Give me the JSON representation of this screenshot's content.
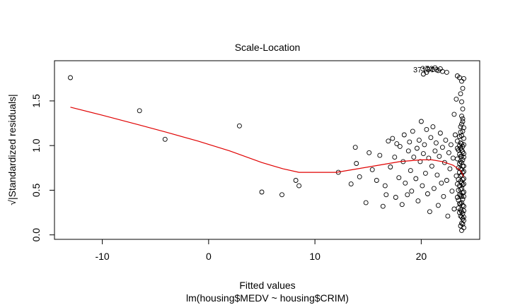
{
  "chart_data": {
    "type": "scatter",
    "title": "Scale-Location",
    "xlabel": "Fitted values",
    "sublabel": "lm(housing$MEDV ~ housing$CRIM)",
    "ylabel": "√|Standardized residuals|",
    "xlim": [
      -14.5,
      25.5
    ],
    "ylim": [
      -0.05,
      1.95
    ],
    "x_ticks": [
      -10,
      0,
      10,
      20
    ],
    "y_ticks": [
      0.0,
      0.5,
      1.0,
      1.5
    ],
    "x_tick_labels": [
      "-10",
      "0",
      "10",
      "20"
    ],
    "y_tick_labels": [
      "0.0",
      "0.5",
      "1.0",
      "1.5"
    ],
    "grid": false,
    "point_color": "#000000",
    "smooth_color": "#e00000",
    "labeled_points": [
      {
        "label": "371",
        "x": 20.6,
        "y": 1.86
      },
      {
        "label": "372",
        "x": 21.3,
        "y": 1.87
      },
      {
        "label": "373",
        "x": 21.8,
        "y": 1.86
      }
    ],
    "smooth_line": {
      "x": [
        -13.0,
        -10.0,
        -6.5,
        -4.0,
        -1.0,
        2.0,
        5.0,
        7.0,
        8.5,
        10.5,
        12.0,
        14.0,
        16.0,
        18.0,
        20.0,
        21.0,
        22.0,
        23.0,
        23.7,
        24.0
      ],
      "y": [
        1.43,
        1.34,
        1.23,
        1.15,
        1.05,
        0.94,
        0.81,
        0.74,
        0.7,
        0.7,
        0.7,
        0.74,
        0.78,
        0.82,
        0.84,
        0.84,
        0.82,
        0.78,
        0.72,
        0.65
      ]
    },
    "points": [
      [
        -13.0,
        1.76
      ],
      [
        -6.5,
        1.39
      ],
      [
        -4.1,
        1.07
      ],
      [
        2.9,
        1.22
      ],
      [
        5.0,
        0.48
      ],
      [
        6.9,
        0.45
      ],
      [
        8.2,
        0.61
      ],
      [
        8.5,
        0.55
      ],
      [
        12.2,
        0.7
      ],
      [
        13.4,
        0.57
      ],
      [
        13.9,
        0.8
      ],
      [
        13.8,
        0.98
      ],
      [
        14.2,
        0.65
      ],
      [
        14.8,
        0.36
      ],
      [
        15.1,
        0.92
      ],
      [
        15.4,
        0.73
      ],
      [
        15.8,
        0.61
      ],
      [
        16.1,
        0.89
      ],
      [
        16.4,
        0.32
      ],
      [
        16.6,
        0.55
      ],
      [
        16.7,
        0.45
      ],
      [
        16.9,
        1.05
      ],
      [
        17.1,
        0.76
      ],
      [
        17.3,
        1.08
      ],
      [
        17.5,
        0.87
      ],
      [
        17.6,
        0.42
      ],
      [
        17.7,
        1.02
      ],
      [
        17.9,
        0.64
      ],
      [
        18.0,
        0.99
      ],
      [
        18.2,
        0.34
      ],
      [
        18.3,
        0.82
      ],
      [
        18.4,
        1.12
      ],
      [
        18.5,
        0.58
      ],
      [
        18.7,
        0.45
      ],
      [
        18.8,
        0.94
      ],
      [
        18.9,
        1.04
      ],
      [
        19.0,
        0.72
      ],
      [
        19.1,
        0.49
      ],
      [
        19.2,
        1.16
      ],
      [
        19.3,
        0.87
      ],
      [
        19.5,
        0.63
      ],
      [
        19.6,
        0.97
      ],
      [
        19.7,
        0.38
      ],
      [
        19.8,
        1.06
      ],
      [
        19.9,
        0.82
      ],
      [
        20.0,
        1.27
      ],
      [
        20.1,
        0.55
      ],
      [
        20.2,
        0.91
      ],
      [
        20.3,
        1.01
      ],
      [
        20.4,
        0.69
      ],
      [
        20.5,
        1.18
      ],
      [
        20.6,
        0.46
      ],
      [
        20.7,
        0.86
      ],
      [
        20.8,
        0.26
      ],
      [
        20.9,
        1.09
      ],
      [
        21.0,
        0.77
      ],
      [
        21.1,
        1.21
      ],
      [
        21.2,
        0.52
      ],
      [
        21.3,
        0.94
      ],
      [
        21.4,
        1.03
      ],
      [
        21.5,
        0.67
      ],
      [
        21.6,
        0.33
      ],
      [
        21.7,
        0.88
      ],
      [
        21.8,
        1.14
      ],
      [
        21.9,
        0.58
      ],
      [
        22.0,
        0.98
      ],
      [
        22.1,
        0.43
      ],
      [
        22.2,
        0.81
      ],
      [
        22.3,
        1.06
      ],
      [
        22.4,
        0.61
      ],
      [
        22.5,
        0.21
      ],
      [
        22.6,
        0.92
      ],
      [
        22.7,
        0.74
      ],
      [
        22.8,
        1.01
      ],
      [
        22.9,
        0.49
      ],
      [
        23.0,
        0.86
      ],
      [
        23.1,
        0.29
      ],
      [
        23.2,
        1.12
      ],
      [
        23.3,
        0.66
      ],
      [
        23.4,
        0.97
      ],
      [
        23.5,
        0.39
      ],
      [
        23.1,
        1.35
      ],
      [
        23.3,
        1.52
      ],
      [
        23.4,
        1.78
      ],
      [
        23.6,
        1.76
      ],
      [
        23.8,
        1.72
      ],
      [
        23.9,
        1.64
      ],
      [
        24.0,
        1.75
      ],
      [
        20.2,
        1.8
      ],
      [
        20.5,
        1.82
      ],
      [
        21.1,
        1.85
      ],
      [
        21.6,
        1.84
      ],
      [
        22.0,
        1.83
      ],
      [
        22.4,
        1.82
      ],
      [
        23.7,
        1.58
      ],
      [
        23.8,
        1.49
      ],
      [
        23.9,
        1.41
      ],
      [
        23.8,
        1.33
      ],
      [
        23.9,
        1.27
      ],
      [
        23.7,
        1.21
      ],
      [
        23.9,
        1.16
      ],
      [
        23.8,
        1.11
      ],
      [
        24.0,
        1.08
      ],
      [
        23.7,
        1.03
      ],
      [
        23.9,
        0.99
      ],
      [
        23.8,
        0.95
      ],
      [
        24.0,
        0.91
      ],
      [
        23.7,
        0.88
      ],
      [
        23.9,
        0.84
      ],
      [
        23.8,
        0.81
      ],
      [
        24.0,
        0.77
      ],
      [
        23.7,
        0.74
      ],
      [
        23.9,
        0.7
      ],
      [
        23.8,
        0.67
      ],
      [
        24.0,
        0.63
      ],
      [
        23.7,
        0.6
      ],
      [
        23.9,
        0.56
      ],
      [
        23.8,
        0.52
      ],
      [
        24.0,
        0.48
      ],
      [
        23.7,
        0.44
      ],
      [
        23.9,
        0.4
      ],
      [
        23.8,
        0.36
      ],
      [
        24.0,
        0.32
      ],
      [
        23.7,
        0.28
      ],
      [
        23.9,
        0.24
      ],
      [
        23.8,
        0.2
      ],
      [
        24.0,
        0.16
      ],
      [
        23.9,
        0.12
      ],
      [
        24.0,
        0.08
      ],
      [
        23.8,
        0.05
      ],
      [
        23.6,
        1.0
      ],
      [
        23.6,
        0.9
      ],
      [
        23.6,
        0.8
      ],
      [
        23.6,
        0.7
      ],
      [
        23.6,
        0.55
      ],
      [
        23.6,
        0.45
      ],
      [
        23.6,
        0.35
      ],
      [
        23.6,
        0.25
      ],
      [
        23.6,
        1.1
      ],
      [
        23.5,
        0.95
      ],
      [
        23.5,
        0.75
      ],
      [
        23.5,
        0.62
      ],
      [
        23.5,
        0.5
      ],
      [
        23.5,
        0.3
      ],
      [
        23.4,
        1.05
      ],
      [
        23.4,
        0.85
      ],
      [
        23.4,
        0.57
      ],
      [
        23.4,
        0.42
      ],
      [
        24.0,
        1.2
      ],
      [
        24.0,
        1.01
      ],
      [
        24.0,
        0.87
      ],
      [
        24.0,
        0.71
      ],
      [
        24.0,
        0.57
      ],
      [
        24.0,
        0.43
      ],
      [
        24.0,
        0.27
      ],
      [
        24.0,
        0.2
      ],
      [
        23.9,
        1.3
      ],
      [
        23.9,
        0.93
      ],
      [
        23.9,
        0.77
      ],
      [
        23.9,
        0.62
      ],
      [
        23.9,
        0.47
      ],
      [
        23.9,
        0.33
      ],
      [
        23.9,
        0.18
      ],
      [
        23.8,
        1.24
      ],
      [
        23.8,
        1.02
      ],
      [
        23.8,
        0.88
      ],
      [
        23.8,
        0.73
      ],
      [
        23.8,
        0.58
      ],
      [
        23.8,
        0.43
      ],
      [
        23.8,
        0.26
      ],
      [
        23.8,
        0.13
      ],
      [
        23.7,
        1.15
      ],
      [
        23.7,
        0.97
      ],
      [
        23.7,
        0.82
      ],
      [
        23.7,
        0.66
      ],
      [
        23.7,
        0.51
      ],
      [
        23.7,
        0.35
      ],
      [
        23.7,
        0.21
      ],
      [
        23.7,
        0.1
      ]
    ]
  }
}
